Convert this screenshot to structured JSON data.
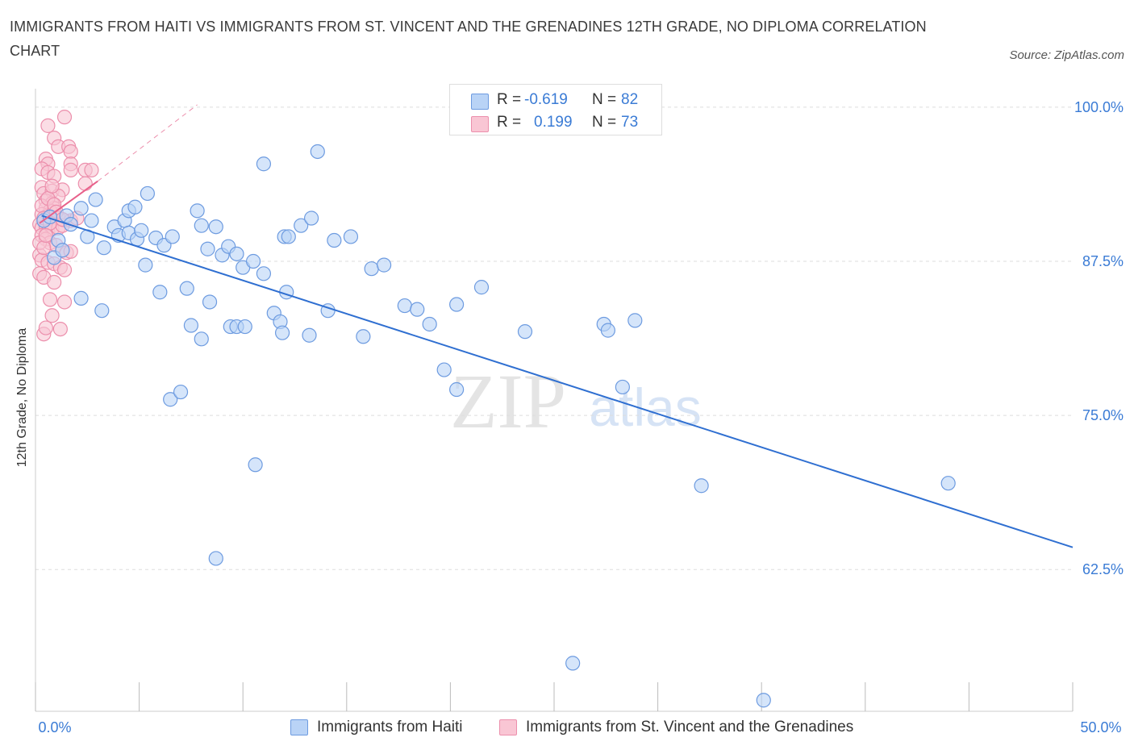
{
  "title": "IMMIGRANTS FROM HAITI VS IMMIGRANTS FROM ST. VINCENT AND THE GRENADINES 12TH GRADE, NO DIPLOMA CORRELATION CHART",
  "source": "Source: ZipAtlas.com",
  "watermark": {
    "zip": "ZIP",
    "atlas": "atlas"
  },
  "colors": {
    "haiti_fill": "#b9d3f6",
    "haiti_stroke": "#6d9be0",
    "haiti_line": "#2f6fd1",
    "svg_fill": "#f9c6d4",
    "svg_stroke": "#ec8fac",
    "svg_line": "#e8608a",
    "axis_label": "#3a7bd5",
    "grid": "#dddddd"
  },
  "legend": {
    "rows": [
      {
        "r_label": "R =",
        "r_value": "-0.619",
        "n_label": "N =",
        "n_value": "82"
      },
      {
        "r_label": "R =",
        "r_value": "0.199",
        "n_label": "N =",
        "n_value": "73"
      }
    ]
  },
  "bottom_legend": [
    "Immigrants from Haiti",
    "Immigrants from St. Vincent and the Grenadines"
  ],
  "chart_data": {
    "type": "scatter",
    "title": "IMMIGRANTS FROM HAITI VS IMMIGRANTS FROM ST. VINCENT AND THE GRENADINES 12TH GRADE, NO DIPLOMA CORRELATION CHART",
    "xlabel": "",
    "ylabel": "12th Grade, No Diploma",
    "xlim": [
      0,
      50
    ],
    "ylim": [
      51.0,
      101.5
    ],
    "x_tick_labels": [
      "0.0%",
      "50.0%"
    ],
    "y_ticks": [
      62.5,
      75.0,
      87.5,
      100.0
    ],
    "y_tick_labels": [
      "62.5%",
      "75.0%",
      "87.5%",
      "100.0%"
    ],
    "grid": true,
    "legend_position": "top-center",
    "series": [
      {
        "name": "Immigrants from Haiti",
        "r": -0.619,
        "n": 82,
        "trend": {
          "x": [
            0.3,
            50.0
          ],
          "y": [
            91.2,
            64.3
          ]
        },
        "points": [
          [
            0.4,
            90.8
          ],
          [
            0.7,
            91.1
          ],
          [
            0.9,
            87.8
          ],
          [
            1.1,
            89.2
          ],
          [
            1.3,
            88.4
          ],
          [
            1.5,
            91.2
          ],
          [
            1.7,
            90.5
          ],
          [
            2.2,
            91.8
          ],
          [
            2.5,
            89.5
          ],
          [
            2.7,
            90.8
          ],
          [
            2.2,
            84.5
          ],
          [
            3.3,
            88.6
          ],
          [
            3.2,
            83.5
          ],
          [
            3.8,
            90.3
          ],
          [
            4.0,
            89.6
          ],
          [
            4.3,
            90.8
          ],
          [
            4.5,
            91.6
          ],
          [
            4.5,
            89.8
          ],
          [
            4.9,
            89.3
          ],
          [
            5.1,
            90.0
          ],
          [
            5.3,
            87.2
          ],
          [
            5.4,
            93.0
          ],
          [
            5.8,
            89.4
          ],
          [
            6.0,
            85.0
          ],
          [
            6.2,
            88.8
          ],
          [
            6.5,
            76.3
          ],
          [
            6.6,
            89.5
          ],
          [
            7.0,
            76.9
          ],
          [
            7.3,
            85.3
          ],
          [
            7.5,
            82.3
          ],
          [
            7.8,
            91.6
          ],
          [
            8.0,
            90.4
          ],
          [
            8.0,
            81.2
          ],
          [
            8.3,
            88.5
          ],
          [
            8.4,
            84.2
          ],
          [
            8.7,
            63.4
          ],
          [
            8.7,
            90.3
          ],
          [
            9.0,
            88.0
          ],
          [
            9.3,
            88.7
          ],
          [
            9.4,
            82.2
          ],
          [
            9.7,
            82.2
          ],
          [
            9.7,
            88.1
          ],
          [
            10.0,
            87.0
          ],
          [
            10.1,
            82.2
          ],
          [
            10.5,
            87.5
          ],
          [
            10.6,
            71.0
          ],
          [
            11.0,
            86.5
          ],
          [
            11.0,
            95.4
          ],
          [
            11.5,
            83.3
          ],
          [
            11.8,
            82.6
          ],
          [
            11.9,
            81.7
          ],
          [
            12.0,
            89.5
          ],
          [
            12.1,
            85.0
          ],
          [
            12.2,
            89.5
          ],
          [
            12.8,
            90.4
          ],
          [
            13.2,
            81.5
          ],
          [
            13.3,
            91.0
          ],
          [
            13.6,
            96.4
          ],
          [
            14.1,
            83.5
          ],
          [
            14.4,
            89.2
          ],
          [
            15.2,
            89.5
          ],
          [
            15.8,
            81.4
          ],
          [
            16.2,
            86.9
          ],
          [
            16.8,
            87.2
          ],
          [
            17.8,
            83.9
          ],
          [
            18.4,
            83.6
          ],
          [
            19.0,
            82.4
          ],
          [
            19.7,
            78.7
          ],
          [
            20.3,
            77.1
          ],
          [
            20.3,
            84.0
          ],
          [
            21.5,
            85.4
          ],
          [
            23.6,
            81.8
          ],
          [
            25.9,
            54.9
          ],
          [
            27.4,
            82.4
          ],
          [
            27.6,
            81.9
          ],
          [
            28.3,
            77.3
          ],
          [
            28.9,
            82.7
          ],
          [
            32.1,
            69.3
          ],
          [
            35.1,
            51.9
          ],
          [
            44.0,
            69.5
          ],
          [
            2.9,
            92.5
          ],
          [
            4.8,
            91.9
          ]
        ]
      },
      {
        "name": "Immigrants from St. Vincent and the Grenadines",
        "r": 0.199,
        "n": 73,
        "trend": {
          "x": [
            0.2,
            3.0
          ],
          "y": [
            90.6,
            94.0
          ]
        },
        "trend_dashed": {
          "x": [
            3.0,
            7.8
          ],
          "y": [
            94.0,
            100.2
          ]
        },
        "points": [
          [
            0.6,
            98.5
          ],
          [
            0.9,
            97.5
          ],
          [
            1.4,
            99.2
          ],
          [
            1.1,
            96.8
          ],
          [
            1.6,
            96.8
          ],
          [
            1.7,
            96.4
          ],
          [
            0.5,
            95.8
          ],
          [
            0.6,
            95.4
          ],
          [
            1.7,
            95.4
          ],
          [
            0.3,
            95.0
          ],
          [
            0.6,
            94.7
          ],
          [
            0.9,
            94.4
          ],
          [
            1.7,
            94.9
          ],
          [
            2.4,
            94.9
          ],
          [
            2.7,
            94.9
          ],
          [
            2.4,
            93.8
          ],
          [
            0.3,
            93.5
          ],
          [
            0.4,
            93.0
          ],
          [
            0.8,
            93.2
          ],
          [
            1.3,
            93.3
          ],
          [
            1.1,
            92.8
          ],
          [
            0.5,
            92.4
          ],
          [
            0.8,
            92.2
          ],
          [
            0.5,
            91.8
          ],
          [
            0.9,
            91.8
          ],
          [
            0.7,
            91.6
          ],
          [
            0.3,
            91.3
          ],
          [
            0.6,
            91.2
          ],
          [
            0.9,
            90.8
          ],
          [
            1.1,
            91.0
          ],
          [
            1.4,
            90.8
          ],
          [
            1.7,
            90.8
          ],
          [
            2.0,
            91.0
          ],
          [
            0.2,
            90.5
          ],
          [
            0.3,
            90.2
          ],
          [
            0.5,
            90.4
          ],
          [
            0.6,
            89.9
          ],
          [
            0.8,
            90.1
          ],
          [
            1.1,
            90.2
          ],
          [
            1.3,
            90.4
          ],
          [
            0.3,
            89.6
          ],
          [
            0.5,
            89.3
          ],
          [
            0.7,
            89.0
          ],
          [
            1.0,
            88.8
          ],
          [
            1.3,
            88.4
          ],
          [
            1.5,
            88.2
          ],
          [
            1.7,
            88.3
          ],
          [
            0.2,
            88.0
          ],
          [
            0.3,
            87.6
          ],
          [
            0.6,
            87.4
          ],
          [
            0.9,
            87.3
          ],
          [
            1.2,
            87.0
          ],
          [
            1.4,
            86.8
          ],
          [
            0.2,
            86.5
          ],
          [
            0.4,
            86.2
          ],
          [
            0.9,
            85.8
          ],
          [
            0.7,
            84.4
          ],
          [
            1.4,
            84.2
          ],
          [
            0.8,
            83.1
          ],
          [
            1.2,
            82.0
          ],
          [
            0.4,
            81.6
          ],
          [
            0.5,
            82.1
          ],
          [
            0.3,
            92.0
          ],
          [
            0.6,
            92.6
          ],
          [
            0.9,
            92.1
          ],
          [
            1.0,
            91.5
          ],
          [
            0.4,
            91.0
          ],
          [
            0.7,
            90.6
          ],
          [
            0.2,
            89.0
          ],
          [
            0.4,
            88.6
          ],
          [
            0.5,
            89.6
          ],
          [
            1.3,
            90.9
          ],
          [
            0.8,
            93.6
          ]
        ]
      }
    ]
  }
}
